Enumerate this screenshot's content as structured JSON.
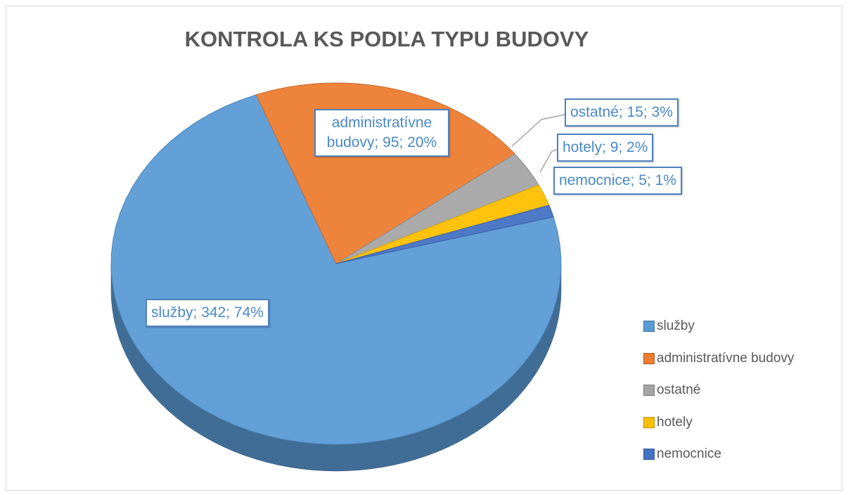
{
  "chart_data": {
    "type": "pie3d",
    "title": "KONTROLA KS PODĽA TYPU BUDOVY",
    "categories": [
      "služby",
      "administratívne budovy",
      "ostatné",
      "hotely",
      "nemocnice"
    ],
    "values": [
      342,
      95,
      15,
      9,
      5
    ],
    "value_labels": [
      "služby; 342; 74%",
      "administratívne budovy; 95; 20%",
      "ostatné; 15; 3%",
      "hotely; 9; 2%",
      "nemocnice; 5; 1%"
    ],
    "colors": [
      "#5b9bd5",
      "#ed7d31",
      "#a5a5a5",
      "#ffc000",
      "#4472c4"
    ],
    "legend": "right"
  }
}
